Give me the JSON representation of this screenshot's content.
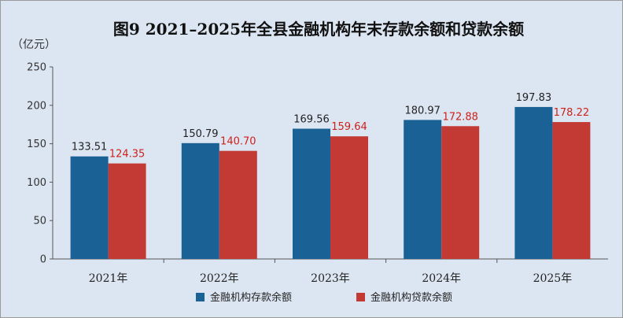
{
  "chart_data": {
    "type": "bar",
    "title": "图9  2021–2025年全县金融机构年末存款余额和贷款余额",
    "ylabel": "（亿元）",
    "categories": [
      "2021年",
      "2022年",
      "2023年",
      "2024年",
      "2025年"
    ],
    "ylim": [
      0,
      250
    ],
    "yticks": [
      0,
      50,
      100,
      150,
      200,
      250
    ],
    "grid": false,
    "legend_position": "bottom-center",
    "series": [
      {
        "name": "金融机构存款余额",
        "color": "#1a6196",
        "label_color": "#222222",
        "values": [
          133.51,
          150.79,
          169.56,
          180.97,
          197.83
        ],
        "labels": [
          "133.51",
          "150.79",
          "169.56",
          "180.97",
          "197.83"
        ]
      },
      {
        "name": "金融机构贷款余额",
        "color": "#c33a35",
        "label_color": "#d0201a",
        "values": [
          124.35,
          140.7,
          159.64,
          172.88,
          178.22
        ],
        "labels": [
          "124.35",
          "140.70",
          "159.64",
          "172.88",
          "178.22"
        ]
      }
    ]
  }
}
